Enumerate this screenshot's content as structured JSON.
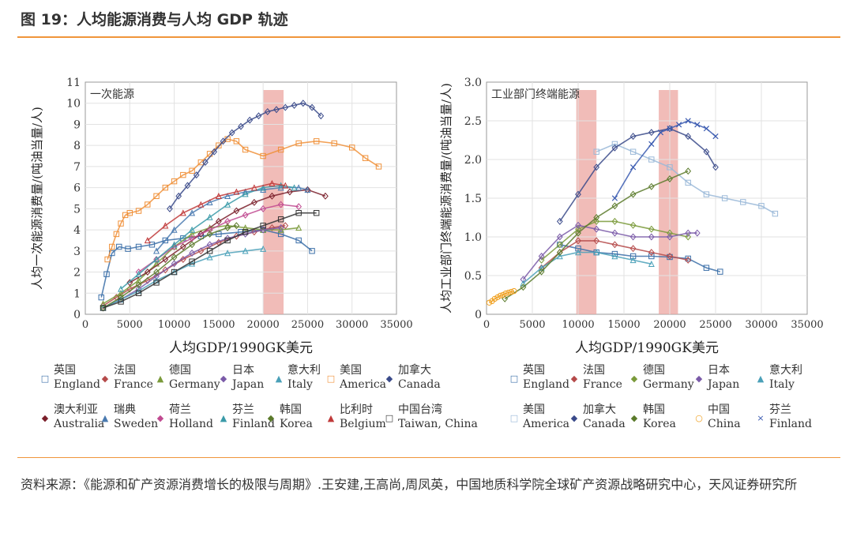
{
  "header": {
    "title": "图 19：人均能源消费与人均 GDP 轨迹",
    "accent_color": "#f0953a"
  },
  "source": {
    "text": "资料来源：《能源和矿产资源消费增长的极限与周期》.王安建,王高尚,周凤英，中国地质科学院全球矿产资源战略研究中心，天风证券研究所"
  },
  "chart_data": [
    {
      "type": "scatter",
      "title": "一次能源",
      "xlabel": "人均GDP/1990GK美元",
      "ylabel": "人均一次能源消费量/(吨油当量/人)",
      "xlim": [
        0,
        35000
      ],
      "ylim": [
        0,
        11
      ],
      "xticks": [
        0,
        5000,
        10000,
        15000,
        20000,
        25000,
        30000,
        35000
      ],
      "xtick_labels": [
        "0",
        "5000",
        "10000",
        "15000",
        "20000",
        "25000",
        "30000",
        "35000"
      ],
      "yticks": [
        0,
        1,
        2,
        3,
        4,
        5,
        6,
        7,
        8,
        9,
        10,
        11
      ],
      "ytick_labels": [
        "0",
        "1",
        "2",
        "3",
        "4",
        "5",
        "6",
        "7",
        "8",
        "9",
        "10",
        "11"
      ],
      "grid": true,
      "highlight_band": [
        20000,
        22300
      ],
      "series": [
        {
          "name": "England",
          "name_cn": "英国",
          "marker": "□",
          "color": "#3b6fa8",
          "x": [
            1800,
            2400,
            3000,
            3800,
            4800,
            6000,
            7500,
            9000,
            11000,
            13000,
            15000,
            17500,
            20000,
            22000,
            24000,
            25500
          ],
          "y": [
            0.8,
            1.9,
            2.9,
            3.2,
            3.1,
            3.2,
            3.3,
            3.5,
            3.6,
            3.7,
            3.8,
            3.9,
            4.0,
            3.8,
            3.5,
            3.0
          ]
        },
        {
          "name": "France",
          "name_cn": "法国",
          "marker": "◆",
          "color": "#b54a4a",
          "x": [
            2000,
            3500,
            5000,
            7000,
            9000,
            11000,
            13000,
            15000,
            17000,
            19000,
            21000,
            22500
          ],
          "y": [
            0.4,
            0.8,
            1.2,
            1.6,
            2.1,
            2.6,
            3.0,
            3.4,
            3.7,
            3.9,
            4.1,
            4.2
          ]
        },
        {
          "name": "Germany",
          "name_cn": "德国",
          "marker": "▲",
          "color": "#7a9a3a",
          "x": [
            2000,
            4000,
            6000,
            8000,
            10000,
            12000,
            14000,
            16000,
            18000,
            20000,
            22000,
            24000
          ],
          "y": [
            0.5,
            1.0,
            1.6,
            2.4,
            3.2,
            3.8,
            4.1,
            4.2,
            4.1,
            4.0,
            4.0,
            4.1
          ]
        },
        {
          "name": "Japan",
          "name_cn": "日本",
          "marker": "◆",
          "color": "#7a5aa8",
          "x": [
            2000,
            4000,
            6000,
            8000,
            10000,
            12000,
            14000,
            16000,
            18000,
            20000,
            22000
          ],
          "y": [
            0.3,
            0.7,
            1.2,
            1.8,
            2.4,
            2.9,
            3.3,
            3.6,
            3.8,
            4.0,
            4.1
          ]
        },
        {
          "name": "Italy",
          "name_cn": "意大利",
          "marker": "▲",
          "color": "#4aa0b8",
          "x": [
            2000,
            4000,
            6000,
            8000,
            10000,
            12000,
            14000,
            16000,
            18000,
            20000
          ],
          "y": [
            0.3,
            0.7,
            1.1,
            1.6,
            2.0,
            2.4,
            2.7,
            2.9,
            3.0,
            3.1
          ]
        },
        {
          "name": "America",
          "name_cn": "美国",
          "marker": "□",
          "color": "#f0913a",
          "x": [
            2500,
            3000,
            3500,
            4000,
            4500,
            5000,
            6000,
            7000,
            8000,
            9000,
            10000,
            11000,
            12000,
            13000,
            14000,
            15000,
            16000,
            17000,
            18000,
            20000,
            22000,
            24000,
            26000,
            28000,
            30000,
            31500,
            33000
          ],
          "y": [
            2.6,
            3.2,
            3.8,
            4.3,
            4.7,
            4.8,
            4.9,
            5.2,
            5.6,
            6.0,
            6.3,
            6.6,
            6.8,
            7.2,
            7.6,
            8.0,
            8.3,
            8.2,
            7.8,
            7.5,
            7.8,
            8.1,
            8.2,
            8.1,
            7.9,
            7.4,
            7.0
          ]
        },
        {
          "name": "Canada",
          "name_cn": "加拿大",
          "marker": "◆",
          "color": "#3a4a8a",
          "x": [
            9500,
            10500,
            11500,
            12500,
            13500,
            14500,
            15500,
            16500,
            17500,
            18500,
            19500,
            20500,
            21500,
            22500,
            23500,
            24500,
            25500,
            26500
          ],
          "y": [
            5.0,
            5.6,
            6.1,
            6.6,
            7.2,
            7.7,
            8.2,
            8.6,
            8.9,
            9.2,
            9.4,
            9.6,
            9.7,
            9.8,
            9.9,
            10.0,
            9.8,
            9.4
          ]
        },
        {
          "name": "Australia",
          "name_cn": "澳大利亚",
          "marker": "◆",
          "color": "#7a1f2a",
          "x": [
            5000,
            7000,
            9000,
            11000,
            13000,
            15000,
            17000,
            19000,
            21000,
            23000,
            25000,
            27000
          ],
          "y": [
            1.5,
            2.0,
            2.6,
            3.2,
            3.8,
            4.4,
            4.9,
            5.3,
            5.6,
            5.8,
            5.9,
            5.6
          ]
        },
        {
          "name": "Sweden",
          "name_cn": "瑞典",
          "marker": "▲",
          "color": "#4a7ab0",
          "x": [
            8000,
            10000,
            12000,
            14000,
            16000,
            18000,
            20000,
            22000,
            24000,
            25000
          ],
          "y": [
            3.0,
            4.0,
            4.8,
            5.3,
            5.6,
            5.8,
            5.9,
            6.0,
            6.0,
            5.9
          ]
        },
        {
          "name": "Holland",
          "name_cn": "荷兰",
          "marker": "◆",
          "color": "#c04a90",
          "x": [
            6000,
            8000,
            10000,
            12000,
            14000,
            16000,
            18000,
            20000,
            22000,
            24000
          ],
          "y": [
            2.0,
            2.6,
            3.2,
            3.6,
            4.0,
            4.4,
            4.7,
            5.0,
            5.2,
            5.1
          ]
        },
        {
          "name": "Finland",
          "name_cn": "芬兰",
          "marker": "▲",
          "color": "#3a9aa8",
          "x": [
            4000,
            6000,
            8000,
            10000,
            12000,
            14000,
            16000,
            18000,
            20000,
            22000,
            23500
          ],
          "y": [
            1.2,
            1.9,
            2.6,
            3.3,
            4.0,
            4.6,
            5.2,
            5.7,
            6.0,
            6.1,
            6.0
          ]
        },
        {
          "name": "Korea",
          "name_cn": "韩国",
          "marker": "◆",
          "color": "#5a7a2a",
          "x": [
            2000,
            4000,
            6000,
            8000,
            10000,
            12000,
            14000,
            16000,
            17000
          ],
          "y": [
            0.3,
            0.8,
            1.4,
            2.0,
            2.7,
            3.3,
            3.8,
            4.1,
            4.2
          ]
        },
        {
          "name": "Belgium",
          "name_cn": "比利时",
          "marker": "▲",
          "color": "#c03a3a",
          "x": [
            7000,
            9000,
            11000,
            13000,
            15000,
            17000,
            19000,
            21000,
            22500
          ],
          "y": [
            3.5,
            4.2,
            4.8,
            5.2,
            5.6,
            5.8,
            6.0,
            6.2,
            6.1
          ]
        },
        {
          "name": "Taiwan, China",
          "name_cn": "中国台湾",
          "marker": "□",
          "color": "#333333",
          "x": [
            2000,
            4000,
            6000,
            8000,
            10000,
            12000,
            14000,
            16000,
            18000,
            20000,
            22000,
            24000,
            26000
          ],
          "y": [
            0.3,
            0.6,
            1.0,
            1.5,
            2.0,
            2.5,
            3.0,
            3.5,
            3.9,
            4.2,
            4.5,
            4.8,
            4.8
          ]
        }
      ]
    },
    {
      "type": "scatter",
      "title": "工业部门终端能源",
      "xlabel": "人均GDP/1990GK美元",
      "ylabel": "人均工业部门终端能源消费量/(吨油当量/人)",
      "xlim": [
        0,
        35000
      ],
      "ylim": [
        0,
        3.0
      ],
      "xticks": [
        0,
        5000,
        10000,
        15000,
        20000,
        25000,
        30000,
        35000
      ],
      "xtick_labels": [
        "0",
        "5000",
        "10000",
        "15000",
        "20000",
        "25000",
        "30000",
        "35000"
      ],
      "yticks": [
        0,
        0.5,
        1.0,
        1.5,
        2.0,
        2.5,
        3.0
      ],
      "ytick_labels": [
        "0",
        "0.5",
        "1.0",
        "1.5",
        "2.0",
        "2.5",
        "3.0"
      ],
      "grid": true,
      "highlight_bands": [
        [
          9800,
          12000
        ],
        [
          18800,
          20900
        ]
      ],
      "series": [
        {
          "name": "England",
          "name_cn": "英国",
          "marker": "□",
          "color": "#3b6fa8",
          "x": [
            8000,
            10000,
            12000,
            14000,
            16000,
            18000,
            20000,
            22000,
            24000,
            25500
          ],
          "y": [
            0.9,
            0.85,
            0.8,
            0.78,
            0.75,
            0.75,
            0.74,
            0.72,
            0.6,
            0.55
          ]
        },
        {
          "name": "France",
          "name_cn": "法国",
          "marker": "◆",
          "color": "#b54a4a",
          "x": [
            6000,
            8000,
            10000,
            12000,
            14000,
            16000,
            18000,
            20000,
            22000
          ],
          "y": [
            0.6,
            0.8,
            0.95,
            0.95,
            0.9,
            0.85,
            0.8,
            0.75,
            0.7
          ]
        },
        {
          "name": "Germany",
          "name_cn": "德国",
          "marker": "◆",
          "color": "#7a9a3a",
          "x": [
            6000,
            8000,
            10000,
            12000,
            14000,
            16000,
            18000,
            20000,
            22000
          ],
          "y": [
            0.7,
            0.9,
            1.1,
            1.2,
            1.2,
            1.15,
            1.1,
            1.05,
            1.0
          ]
        },
        {
          "name": "Japan",
          "name_cn": "日本",
          "marker": "◆",
          "color": "#7a5aa8",
          "x": [
            4000,
            6000,
            8000,
            10000,
            12000,
            14000,
            16000,
            18000,
            20000,
            22000,
            23000
          ],
          "y": [
            0.45,
            0.75,
            1.0,
            1.15,
            1.1,
            1.05,
            1.0,
            1.0,
            1.0,
            1.05,
            1.05
          ]
        },
        {
          "name": "Italy",
          "name_cn": "意大利",
          "marker": "▲",
          "color": "#4aa0b8",
          "x": [
            4000,
            6000,
            8000,
            10000,
            12000,
            14000,
            16000,
            18000
          ],
          "y": [
            0.4,
            0.6,
            0.75,
            0.8,
            0.8,
            0.75,
            0.7,
            0.65
          ]
        },
        {
          "name": "America",
          "name_cn": "美国",
          "marker": "□",
          "color": "#9ab8d8",
          "x": [
            12000,
            14000,
            16000,
            18000,
            20000,
            22000,
            24000,
            26000,
            28000,
            30000,
            31500
          ],
          "y": [
            2.1,
            2.2,
            2.1,
            2.0,
            1.9,
            1.7,
            1.55,
            1.5,
            1.45,
            1.4,
            1.3
          ]
        },
        {
          "name": "Canada",
          "name_cn": "加拿大",
          "marker": "◆",
          "color": "#3a4a8a",
          "x": [
            8000,
            10000,
            12000,
            14000,
            16000,
            18000,
            20000,
            22000,
            24000,
            25000
          ],
          "y": [
            1.2,
            1.55,
            1.9,
            2.15,
            2.3,
            2.35,
            2.4,
            2.3,
            2.1,
            1.9
          ]
        },
        {
          "name": "Korea",
          "name_cn": "韩国",
          "marker": "◆",
          "color": "#5a7a2a",
          "x": [
            2000,
            4000,
            6000,
            8000,
            10000,
            12000,
            14000,
            16000,
            18000,
            20000,
            22000
          ],
          "y": [
            0.2,
            0.35,
            0.55,
            0.8,
            1.05,
            1.25,
            1.4,
            1.55,
            1.65,
            1.75,
            1.85
          ]
        },
        {
          "name": "China",
          "name_cn": "中国",
          "marker": "○",
          "color": "#f0a020",
          "x": [
            300,
            600,
            900,
            1200,
            1500,
            1800,
            2100,
            2400,
            2700,
            3000
          ],
          "y": [
            0.15,
            0.17,
            0.2,
            0.22,
            0.24,
            0.25,
            0.27,
            0.28,
            0.29,
            0.3
          ]
        },
        {
          "name": "Finland",
          "name_cn": "芬兰",
          "marker": "×",
          "color": "#3a5ab0",
          "x": [
            14000,
            16000,
            18000,
            19000,
            20000,
            21000,
            22000,
            23000,
            24000,
            25000
          ],
          "y": [
            1.5,
            1.9,
            2.2,
            2.35,
            2.4,
            2.45,
            2.5,
            2.45,
            2.4,
            2.3
          ]
        }
      ]
    }
  ]
}
